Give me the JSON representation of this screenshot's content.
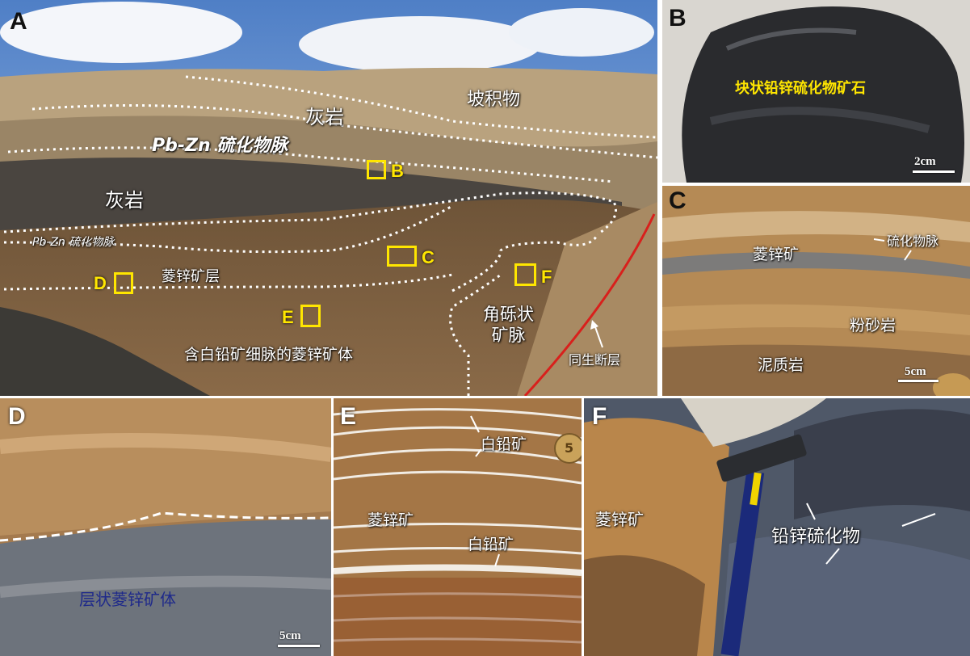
{
  "panels": {
    "A": {
      "letter": "A",
      "labels": {
        "colluvium": "坡积物",
        "limestone_top": "灰岩",
        "pbzn_vein_upper": "Pb-Zn 硫化物脉",
        "limestone_mid": "灰岩",
        "pbzn_vein_lower": "Pb-Zn 硫化物脉",
        "smithsonite_layer": "菱锌矿层",
        "orebody": "含白铅矿细脉的菱锌矿体",
        "breccia_vein": "角砾状\n矿脉",
        "syn_fault": "同生断层"
      },
      "boxes": {
        "B": "B",
        "C": "C",
        "D": "D",
        "E": "E",
        "F": "F"
      }
    },
    "B": {
      "letter": "B",
      "caption": "块状铅锌硫化物矿石",
      "scale": "2cm"
    },
    "C": {
      "letter": "C",
      "smithsonite": "菱锌矿",
      "sulfide_vein": "硫化物脉",
      "siltstone": "粉砂岩",
      "mudstone": "泥质岩",
      "scale": "5cm"
    },
    "D": {
      "letter": "D",
      "caption": "层状菱锌矿体",
      "scale": "5cm"
    },
    "E": {
      "letter": "E",
      "cerussite_top": "白铅矿",
      "smithsonite": "菱锌矿",
      "cerussite_bottom": "白铅矿",
      "coin": "5"
    },
    "F": {
      "letter": "F",
      "smithsonite": "菱锌矿",
      "sulfide": "铅锌硫化物"
    }
  },
  "colors": {
    "highlight": "#ffe600",
    "fault": "#d8201c",
    "caption_D": "#1f2a8a"
  }
}
